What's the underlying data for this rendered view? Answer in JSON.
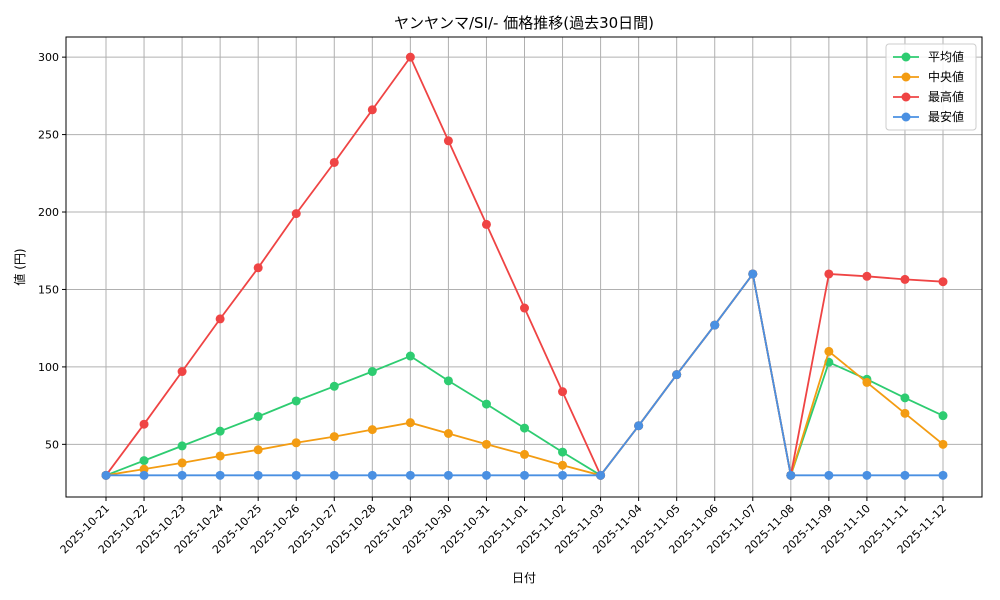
{
  "chart_data": {
    "type": "line",
    "title": "ヤンヤンマ/SI/- 価格推移(過去30日間)",
    "xlabel": "日付",
    "ylabel": "値 (円)",
    "x": [
      "2025-10-21",
      "2025-10-22",
      "2025-10-23",
      "2025-10-24",
      "2025-10-25",
      "2025-10-26",
      "2025-10-27",
      "2025-10-28",
      "2025-10-29",
      "2025-10-30",
      "2025-10-31",
      "2025-11-01",
      "2025-11-02",
      "2025-11-03",
      "2025-11-04",
      "2025-11-05",
      "2025-11-06",
      "2025-11-07",
      "2025-11-08",
      "2025-11-09",
      "2025-11-10",
      "2025-11-11",
      "2025-11-12"
    ],
    "yticks": [
      50,
      100,
      150,
      200,
      250,
      300
    ],
    "ylim": [
      16,
      313
    ],
    "grid": true,
    "legend_position": "top-right",
    "series": [
      {
        "name": "平均値",
        "color": "#2ecc71",
        "values": [
          30,
          39.5,
          49,
          58.5,
          68,
          78,
          87.5,
          97,
          107,
          91,
          76,
          60.5,
          45,
          30,
          62,
          95,
          127,
          160,
          30,
          103,
          92,
          80,
          68.5
        ]
      },
      {
        "name": "中央値",
        "color": "#f39c12",
        "values": [
          30,
          34,
          38,
          42.5,
          46.5,
          51,
          55,
          59.5,
          64,
          57,
          50,
          43.5,
          36.5,
          30,
          62,
          95,
          127,
          160,
          30,
          110,
          90,
          70,
          50
        ]
      },
      {
        "name": "最高値",
        "color": "#ef4444",
        "values": [
          30,
          63,
          97,
          131,
          164,
          199,
          232,
          266,
          300,
          246,
          192,
          138,
          84,
          30,
          62,
          95,
          127,
          160,
          30,
          160,
          158.5,
          156.5,
          155
        ]
      },
      {
        "name": "最安値",
        "color": "#4a90e2",
        "values": [
          30,
          30,
          30,
          30,
          30,
          30,
          30,
          30,
          30,
          30,
          30,
          30,
          30,
          30,
          62,
          95,
          127,
          160,
          30,
          30,
          30,
          30,
          30
        ]
      }
    ]
  }
}
